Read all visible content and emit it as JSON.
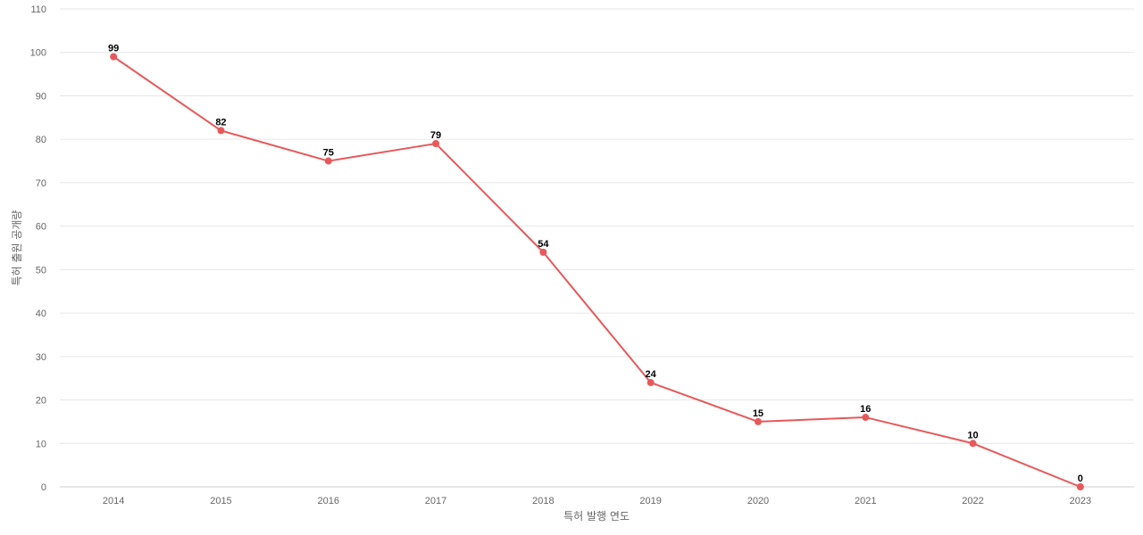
{
  "chart_data": {
    "type": "line",
    "xlabel": "특허 발행 연도",
    "ylabel": "특허 출원 공개량",
    "categories": [
      "2014",
      "2015",
      "2016",
      "2017",
      "2018",
      "2019",
      "2020",
      "2021",
      "2022",
      "2023"
    ],
    "series": [
      {
        "values": [
          99,
          82,
          75,
          79,
          54,
          24,
          15,
          16,
          10,
          0
        ],
        "color": "#e8585a"
      }
    ],
    "ylim": [
      0,
      110
    ],
    "yticks": [
      0,
      10,
      20,
      30,
      40,
      50,
      60,
      70,
      80,
      90,
      100,
      110
    ],
    "grid": true,
    "data_labels": true,
    "markers": true
  }
}
